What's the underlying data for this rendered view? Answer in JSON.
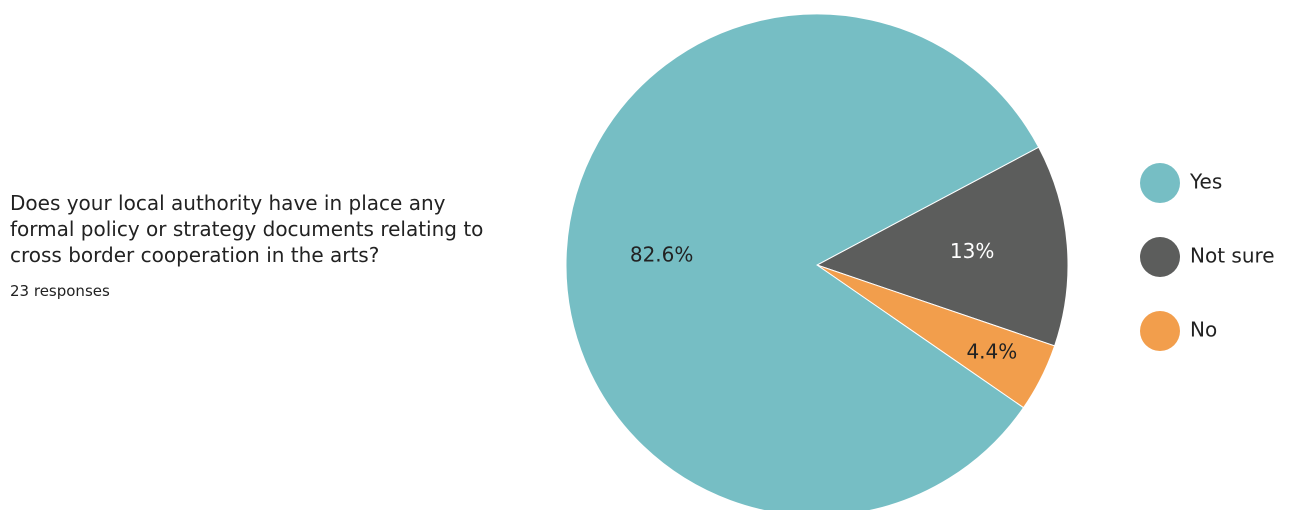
{
  "question": {
    "title": "Does your local authority have in place any formal policy or strategy documents relating to cross border cooperation in the arts?",
    "responses": "23 responses"
  },
  "chart_data": {
    "type": "pie",
    "title": "",
    "start_angle_deg": 0,
    "direction": "counterclockwise-from-right-then-down",
    "slices": [
      {
        "label": "Yes",
        "value": 82.6,
        "display": "82.6%",
        "color": "#76bec4",
        "label_color": "#222222"
      },
      {
        "label": "Not sure",
        "value": 13.0,
        "display": "13%",
        "color": "#5c5d5c",
        "label_color": "#ffffff"
      },
      {
        "label": "No",
        "value": 4.4,
        "display": "4.4%",
        "color": "#f29e4c",
        "label_color": "#222222"
      }
    ],
    "legend": {
      "placement": "right",
      "items": [
        "Yes",
        "Not sure",
        "No"
      ]
    }
  }
}
